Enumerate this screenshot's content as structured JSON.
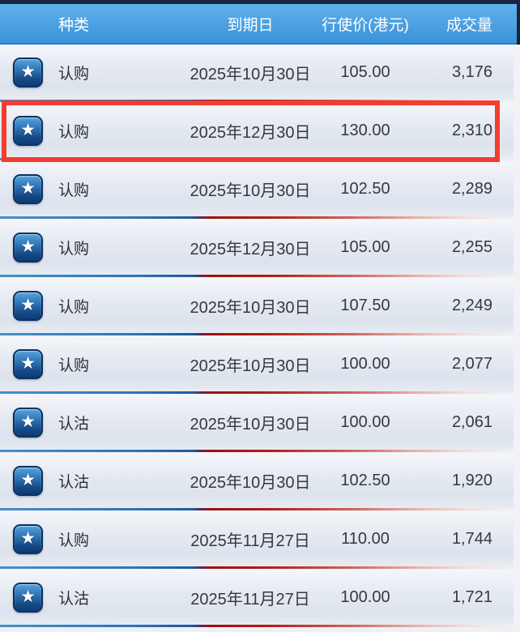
{
  "header": {
    "columns": [
      {
        "key": "type",
        "label": "种类"
      },
      {
        "key": "expiry",
        "label": "到期日"
      },
      {
        "key": "strike",
        "label": "行使价(港元)"
      },
      {
        "key": "volume",
        "label": "成交量"
      }
    ]
  },
  "icons": {
    "favorite": "star-icon",
    "star_glyph": "★"
  },
  "colors": {
    "header_blue_top": "#60b0ec",
    "header_blue_bottom": "#3d92d9",
    "topbar_navy": "#18253e",
    "highlight_red": "#f23d30",
    "separator_blue": "#2e74b4",
    "separator_red": "#b02018",
    "star_button_navy": "#0d3c74"
  },
  "table": {
    "rows": [
      {
        "type": "认购",
        "expiry": "2025年10月30日",
        "strike": "105.00",
        "volume": "3,176",
        "highlighted": false
      },
      {
        "type": "认购",
        "expiry": "2025年12月30日",
        "strike": "130.00",
        "volume": "2,310",
        "highlighted": true
      },
      {
        "type": "认购",
        "expiry": "2025年10月30日",
        "strike": "102.50",
        "volume": "2,289",
        "highlighted": false
      },
      {
        "type": "认购",
        "expiry": "2025年12月30日",
        "strike": "105.00",
        "volume": "2,255",
        "highlighted": false
      },
      {
        "type": "认购",
        "expiry": "2025年10月30日",
        "strike": "107.50",
        "volume": "2,249",
        "highlighted": false
      },
      {
        "type": "认购",
        "expiry": "2025年10月30日",
        "strike": "100.00",
        "volume": "2,077",
        "highlighted": false
      },
      {
        "type": "认沽",
        "expiry": "2025年10月30日",
        "strike": "100.00",
        "volume": "2,061",
        "highlighted": false
      },
      {
        "type": "认沽",
        "expiry": "2025年10月30日",
        "strike": "102.50",
        "volume": "1,920",
        "highlighted": false
      },
      {
        "type": "认购",
        "expiry": "2025年11月27日",
        "strike": "110.00",
        "volume": "1,744",
        "highlighted": false
      },
      {
        "type": "认沽",
        "expiry": "2025年11月27日",
        "strike": "100.00",
        "volume": "1,721",
        "highlighted": false
      }
    ]
  }
}
